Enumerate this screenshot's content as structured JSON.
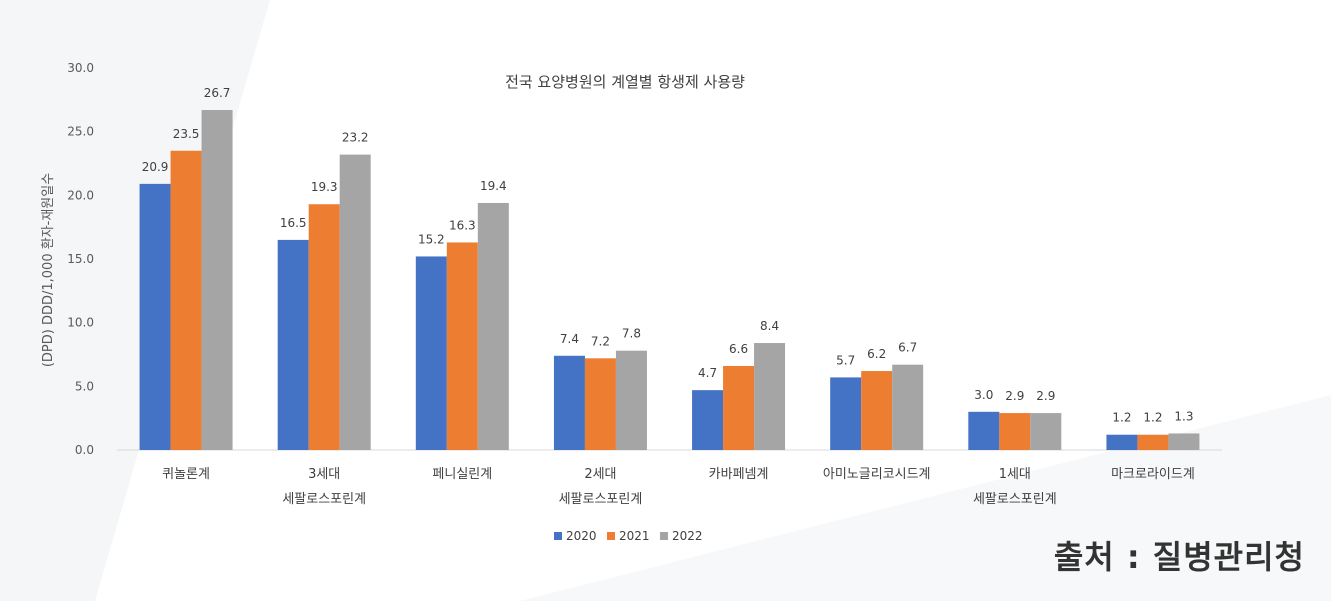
{
  "source_text": "출처 : 질병관리청",
  "colors": {
    "2020": "#4472C4",
    "2021": "#ED7D31",
    "2022": "#A5A5A5"
  },
  "chart_data": {
    "type": "bar",
    "title": "전국 요양병원의 계열별 항생제 사용량",
    "ylabel": "(DPD) DDD/1,000 환자-재원일수",
    "xlabel": "",
    "ylim": [
      0,
      30
    ],
    "yticks": [
      "0.0",
      "5.0",
      "10.0",
      "15.0",
      "20.0",
      "25.0",
      "30.0"
    ],
    "legend_position": "bottom",
    "grid": false,
    "categories": [
      [
        "퀴놀론계"
      ],
      [
        "3세대",
        "세팔로스포린계"
      ],
      [
        "페니실린계"
      ],
      [
        "2세대",
        "세팔로스포린계"
      ],
      [
        "카바페넴계"
      ],
      [
        "아미노글리코시드계"
      ],
      [
        "1세대",
        "세팔로스포린계"
      ],
      [
        "마크로라이드계"
      ]
    ],
    "series": [
      {
        "name": "2020",
        "values": [
          20.9,
          16.5,
          15.2,
          7.4,
          4.7,
          5.7,
          3.0,
          1.2
        ],
        "labels": [
          "20.9",
          "16.5",
          "15.2",
          "7.4",
          "4.7",
          "5.7",
          "3.0",
          "1.2"
        ]
      },
      {
        "name": "2021",
        "values": [
          23.5,
          19.3,
          16.3,
          7.2,
          6.6,
          6.2,
          2.9,
          1.2
        ],
        "labels": [
          "23.5",
          "19.3",
          "16.3",
          "7.2",
          "6.6",
          "6.2",
          "2.9",
          "1.2"
        ]
      },
      {
        "name": "2022",
        "values": [
          26.7,
          23.2,
          19.4,
          7.8,
          8.4,
          6.7,
          2.9,
          1.3
        ],
        "labels": [
          "26.7",
          "23.2",
          "19.4",
          "7.8",
          "8.4",
          "6.7",
          "2.9",
          "1.3"
        ]
      }
    ]
  }
}
